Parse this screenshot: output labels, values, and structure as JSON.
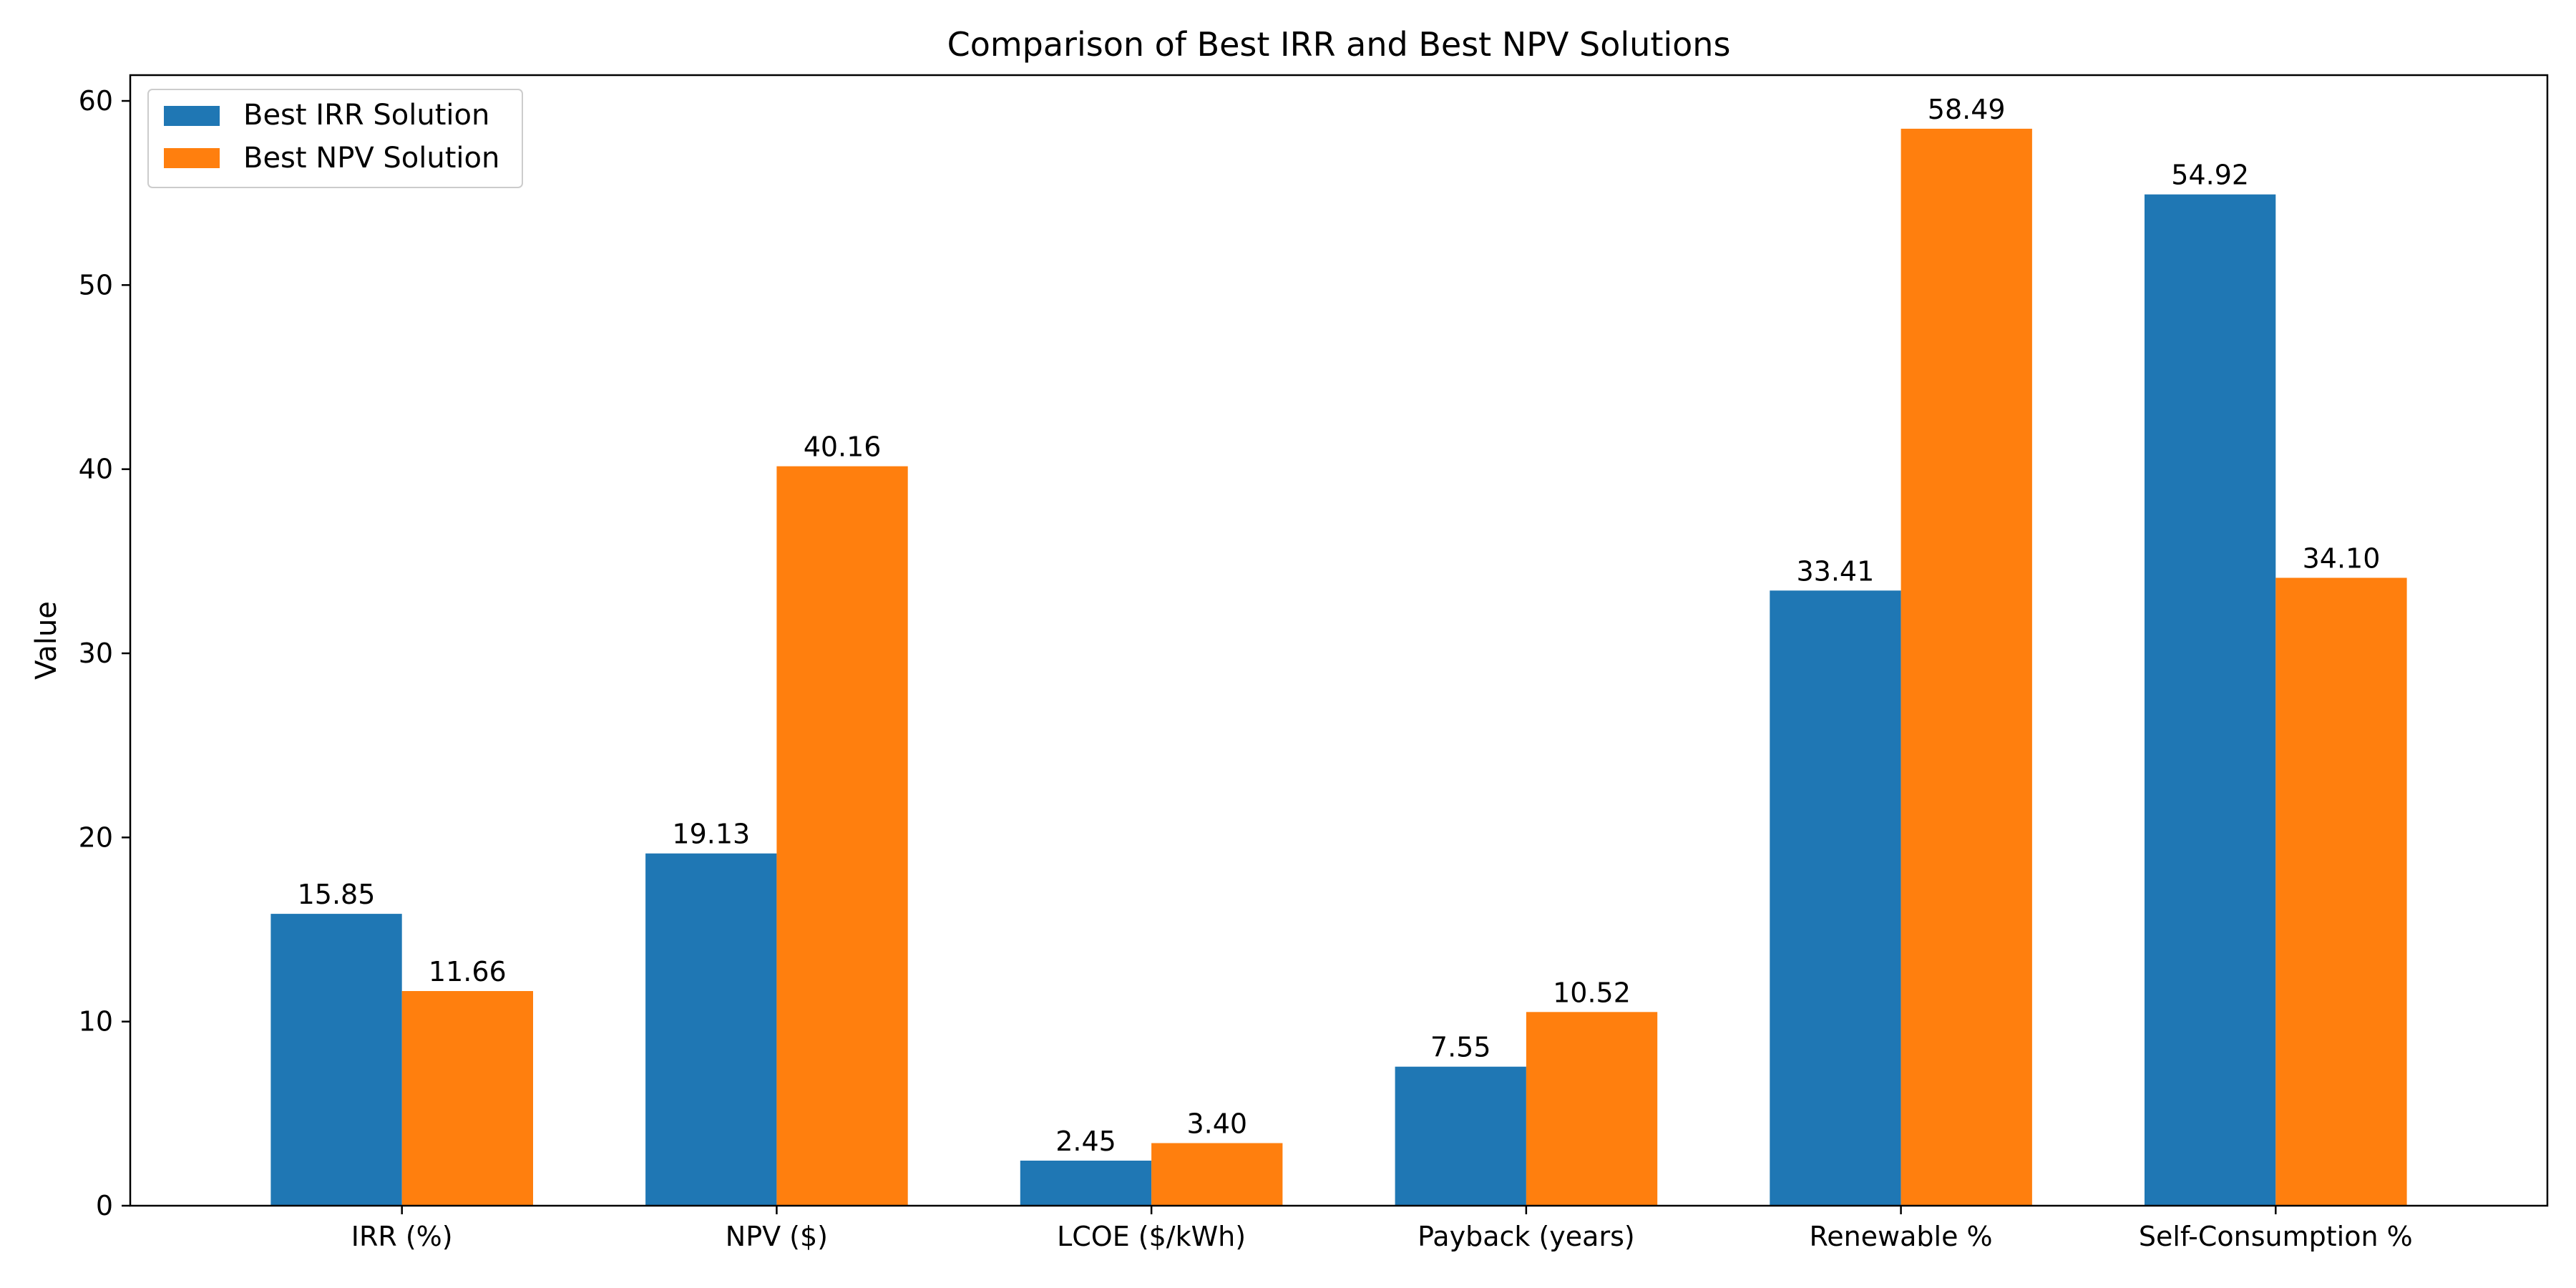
{
  "chart_data": {
    "type": "bar",
    "title": "Comparison of Best IRR and Best NPV Solutions",
    "xlabel": "",
    "ylabel": "Value",
    "ylim": [
      0,
      61.4
    ],
    "yticks": [
      0,
      10,
      20,
      30,
      40,
      50,
      60
    ],
    "grid": false,
    "legend_position": "top-left",
    "categories": [
      "IRR (%)",
      "NPV ($)",
      "LCOE ($/kWh)",
      "Payback (years)",
      "Renewable %",
      "Self-Consumption %"
    ],
    "series": [
      {
        "name": "Best IRR Solution",
        "color": "#1f77b4",
        "values": [
          15.85,
          19.13,
          2.45,
          7.55,
          33.41,
          54.92
        ],
        "labels": [
          "15.85",
          "19.13",
          "2.45",
          "7.55",
          "33.41",
          "54.92"
        ]
      },
      {
        "name": "Best NPV Solution",
        "color": "#ff7f0e",
        "values": [
          11.66,
          40.16,
          3.4,
          10.52,
          58.49,
          34.1
        ],
        "labels": [
          "11.66",
          "40.16",
          "3.40",
          "10.52",
          "58.49",
          "34.10"
        ]
      }
    ]
  }
}
